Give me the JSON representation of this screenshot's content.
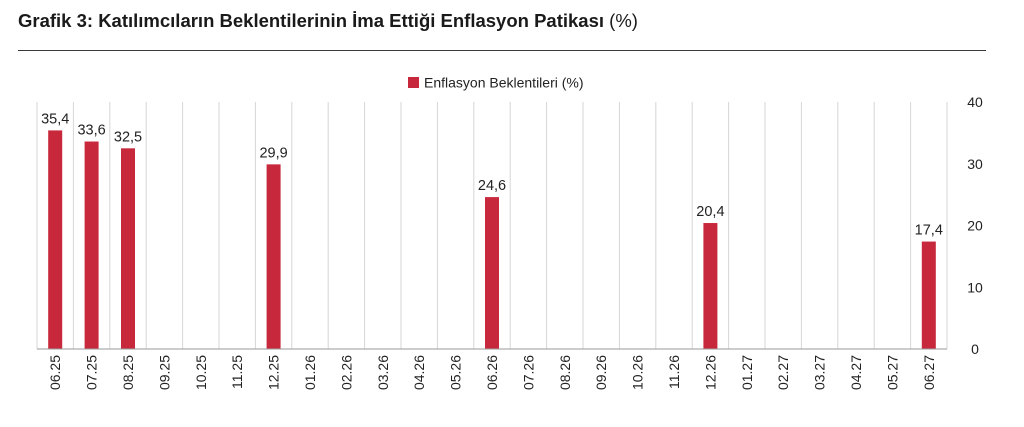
{
  "header": {
    "title": "Grafik 3: Katılımcıların Beklentilerinin İma Ettiği Enflasyon Patikası",
    "title_unit": "(%)"
  },
  "chart_data": {
    "type": "bar",
    "title": "Grafik 3: Katılımcıların Beklentilerinin İma Ettiği Enflasyon Patikası (%)",
    "legend": {
      "position": "top-center"
    },
    "categories": [
      "06.25",
      "07.25",
      "08.25",
      "09.25",
      "10.25",
      "11.25",
      "12.25",
      "01.26",
      "02.26",
      "03.26",
      "04.26",
      "05.26",
      "06.26",
      "07.26",
      "08.26",
      "09.26",
      "10.26",
      "11.26",
      "12.26",
      "01.27",
      "02.27",
      "03.27",
      "04.27",
      "05.27",
      "06.27"
    ],
    "series": [
      {
        "name": "Enflasyon Beklentileri (%)",
        "color": "#c8283c",
        "values": [
          35.4,
          33.6,
          32.5,
          null,
          null,
          null,
          29.9,
          null,
          null,
          null,
          null,
          null,
          24.6,
          null,
          null,
          null,
          null,
          null,
          20.4,
          null,
          null,
          null,
          null,
          null,
          17.4
        ],
        "labels": [
          "35,4",
          "33,6",
          "32,5",
          "",
          "",
          "",
          "29,9",
          "",
          "",
          "",
          "",
          "",
          "24,6",
          "",
          "",
          "",
          "",
          "",
          "20,4",
          "",
          "",
          "",
          "",
          "",
          "17,4"
        ]
      }
    ],
    "y_axis": {
      "side": "right",
      "ylim": [
        0,
        40
      ],
      "ticks": [
        0,
        10,
        20,
        30,
        40
      ]
    },
    "grid": {
      "vertical": true,
      "horizontal": false
    },
    "xlabel": "",
    "ylabel": ""
  }
}
